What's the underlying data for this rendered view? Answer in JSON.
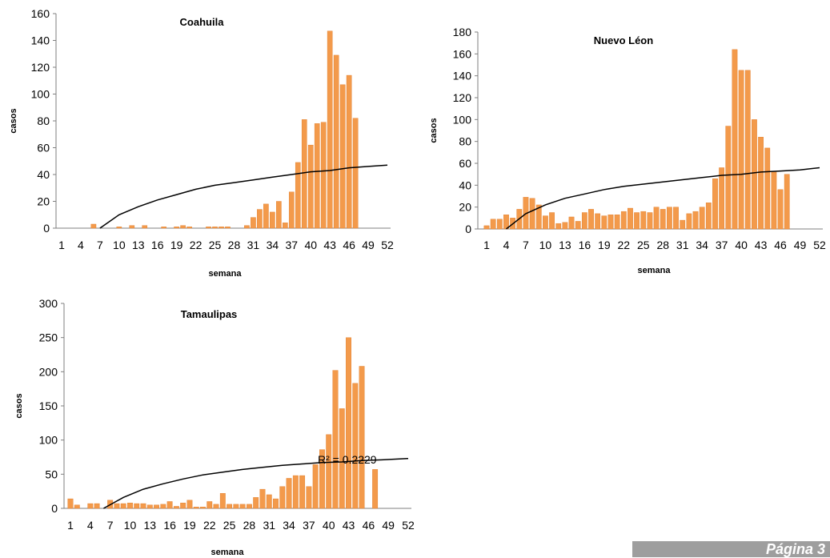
{
  "colors": {
    "bar": "#f39a4b",
    "bar_edge": "#e07b26",
    "trend": "#000000",
    "axis": "#7f7f7f"
  },
  "footer": {
    "text": "Página 3"
  },
  "chart_data": [
    {
      "type": "bar",
      "title": "Coahuila",
      "xlabel": "semana",
      "ylabel": "casos",
      "ylim": [
        0,
        160
      ],
      "yticks": [
        0,
        20,
        40,
        60,
        80,
        100,
        120,
        140,
        160
      ],
      "xlim": [
        1,
        52
      ],
      "xticks": [
        1,
        4,
        7,
        10,
        13,
        16,
        19,
        22,
        25,
        28,
        31,
        34,
        37,
        40,
        43,
        46,
        49,
        52
      ],
      "grid": false,
      "series": [
        {
          "values": [
            [
              6,
              3
            ],
            [
              10,
              1
            ],
            [
              12,
              2
            ],
            [
              14,
              2
            ],
            [
              17,
              1
            ],
            [
              19,
              1
            ],
            [
              20,
              2
            ],
            [
              21,
              1
            ],
            [
              24,
              1
            ],
            [
              25,
              1
            ],
            [
              26,
              1
            ],
            [
              27,
              1
            ],
            [
              30,
              2
            ],
            [
              31,
              8
            ],
            [
              32,
              14
            ],
            [
              33,
              18
            ],
            [
              34,
              12
            ],
            [
              35,
              20
            ],
            [
              36,
              4
            ],
            [
              37,
              27
            ],
            [
              38,
              49
            ],
            [
              39,
              81
            ],
            [
              40,
              62
            ],
            [
              41,
              78
            ],
            [
              42,
              79
            ],
            [
              43,
              147
            ],
            [
              44,
              129
            ],
            [
              45,
              107
            ],
            [
              46,
              114
            ],
            [
              47,
              82
            ]
          ]
        }
      ],
      "trendline": {
        "type": "log",
        "points": [
          [
            7,
            0
          ],
          [
            10,
            10
          ],
          [
            13,
            16
          ],
          [
            16,
            21
          ],
          [
            19,
            25
          ],
          [
            22,
            29
          ],
          [
            25,
            32
          ],
          [
            28,
            34
          ],
          [
            31,
            36
          ],
          [
            34,
            38
          ],
          [
            37,
            40
          ],
          [
            40,
            42
          ],
          [
            43,
            43
          ],
          [
            46,
            45
          ],
          [
            49,
            46
          ],
          [
            52,
            47
          ]
        ]
      },
      "annotation": ""
    },
    {
      "type": "bar",
      "title": "Nuevo Léon",
      "xlabel": "semana",
      "ylabel": "casos",
      "ylim": [
        0,
        180
      ],
      "yticks": [
        0,
        20,
        40,
        60,
        80,
        100,
        120,
        140,
        160,
        180
      ],
      "xlim": [
        1,
        52
      ],
      "xticks": [
        1,
        4,
        7,
        10,
        13,
        16,
        19,
        22,
        25,
        28,
        31,
        34,
        37,
        40,
        43,
        46,
        49,
        52
      ],
      "grid": false,
      "series": [
        {
          "values": [
            [
              1,
              3
            ],
            [
              2,
              9
            ],
            [
              3,
              9
            ],
            [
              4,
              13
            ],
            [
              5,
              10
            ],
            [
              6,
              18
            ],
            [
              7,
              29
            ],
            [
              8,
              28
            ],
            [
              9,
              22
            ],
            [
              10,
              12
            ],
            [
              11,
              15
            ],
            [
              12,
              5
            ],
            [
              13,
              6
            ],
            [
              14,
              11
            ],
            [
              15,
              7
            ],
            [
              16,
              15
            ],
            [
              17,
              18
            ],
            [
              18,
              14
            ],
            [
              19,
              12
            ],
            [
              20,
              13
            ],
            [
              21,
              13
            ],
            [
              22,
              16
            ],
            [
              23,
              19
            ],
            [
              24,
              15
            ],
            [
              25,
              16
            ],
            [
              26,
              15
            ],
            [
              27,
              20
            ],
            [
              28,
              18
            ],
            [
              29,
              20
            ],
            [
              30,
              20
            ],
            [
              31,
              8
            ],
            [
              32,
              14
            ],
            [
              33,
              16
            ],
            [
              34,
              20
            ],
            [
              35,
              24
            ],
            [
              36,
              46
            ],
            [
              37,
              56
            ],
            [
              38,
              94
            ],
            [
              39,
              164
            ],
            [
              40,
              145
            ],
            [
              41,
              145
            ],
            [
              42,
              100
            ],
            [
              43,
              84
            ],
            [
              44,
              74
            ],
            [
              45,
              52
            ],
            [
              46,
              36
            ],
            [
              47,
              50
            ]
          ]
        }
      ],
      "trendline": {
        "type": "log",
        "points": [
          [
            4,
            0
          ],
          [
            7,
            14
          ],
          [
            10,
            22
          ],
          [
            13,
            28
          ],
          [
            16,
            32
          ],
          [
            19,
            36
          ],
          [
            22,
            39
          ],
          [
            25,
            41
          ],
          [
            28,
            43
          ],
          [
            31,
            45
          ],
          [
            34,
            47
          ],
          [
            37,
            49
          ],
          [
            40,
            50
          ],
          [
            43,
            52
          ],
          [
            46,
            53
          ],
          [
            49,
            54
          ],
          [
            52,
            56
          ]
        ]
      },
      "annotation": ""
    },
    {
      "type": "bar",
      "title": "Tamaulipas",
      "xlabel": "semana",
      "ylabel": "casos",
      "ylim": [
        0,
        300
      ],
      "yticks": [
        0,
        50,
        100,
        150,
        200,
        250,
        300
      ],
      "xlim": [
        1,
        52
      ],
      "xticks": [
        1,
        4,
        7,
        10,
        13,
        16,
        19,
        22,
        25,
        28,
        31,
        34,
        37,
        40,
        43,
        46,
        49,
        52
      ],
      "grid": false,
      "series": [
        {
          "values": [
            [
              1,
              14
            ],
            [
              2,
              5
            ],
            [
              4,
              7
            ],
            [
              5,
              7
            ],
            [
              7,
              12
            ],
            [
              8,
              7
            ],
            [
              9,
              7
            ],
            [
              10,
              8
            ],
            [
              11,
              7
            ],
            [
              12,
              7
            ],
            [
              13,
              5
            ],
            [
              14,
              5
            ],
            [
              15,
              6
            ],
            [
              16,
              10
            ],
            [
              17,
              3
            ],
            [
              18,
              8
            ],
            [
              19,
              12
            ],
            [
              20,
              2
            ],
            [
              21,
              2
            ],
            [
              22,
              10
            ],
            [
              23,
              6
            ],
            [
              24,
              22
            ],
            [
              25,
              6
            ],
            [
              26,
              6
            ],
            [
              27,
              6
            ],
            [
              28,
              6
            ],
            [
              29,
              16
            ],
            [
              30,
              28
            ],
            [
              31,
              20
            ],
            [
              32,
              14
            ],
            [
              33,
              32
            ],
            [
              34,
              44
            ],
            [
              35,
              48
            ],
            [
              36,
              48
            ],
            [
              37,
              32
            ],
            [
              38,
              64
            ],
            [
              39,
              86
            ],
            [
              40,
              108
            ],
            [
              41,
              202
            ],
            [
              42,
              146
            ],
            [
              43,
              250
            ],
            [
              44,
              183
            ],
            [
              45,
              208
            ],
            [
              47,
              57
            ]
          ]
        }
      ],
      "trendline": {
        "type": "log",
        "points": [
          [
            6,
            0
          ],
          [
            9,
            16
          ],
          [
            12,
            28
          ],
          [
            15,
            36
          ],
          [
            18,
            43
          ],
          [
            21,
            49
          ],
          [
            24,
            53
          ],
          [
            27,
            57
          ],
          [
            30,
            60
          ],
          [
            33,
            63
          ],
          [
            36,
            65
          ],
          [
            39,
            67
          ],
          [
            42,
            68
          ],
          [
            45,
            70
          ],
          [
            48,
            71
          ],
          [
            52,
            73
          ]
        ]
      },
      "annotation": "R² = 0.2229"
    }
  ]
}
